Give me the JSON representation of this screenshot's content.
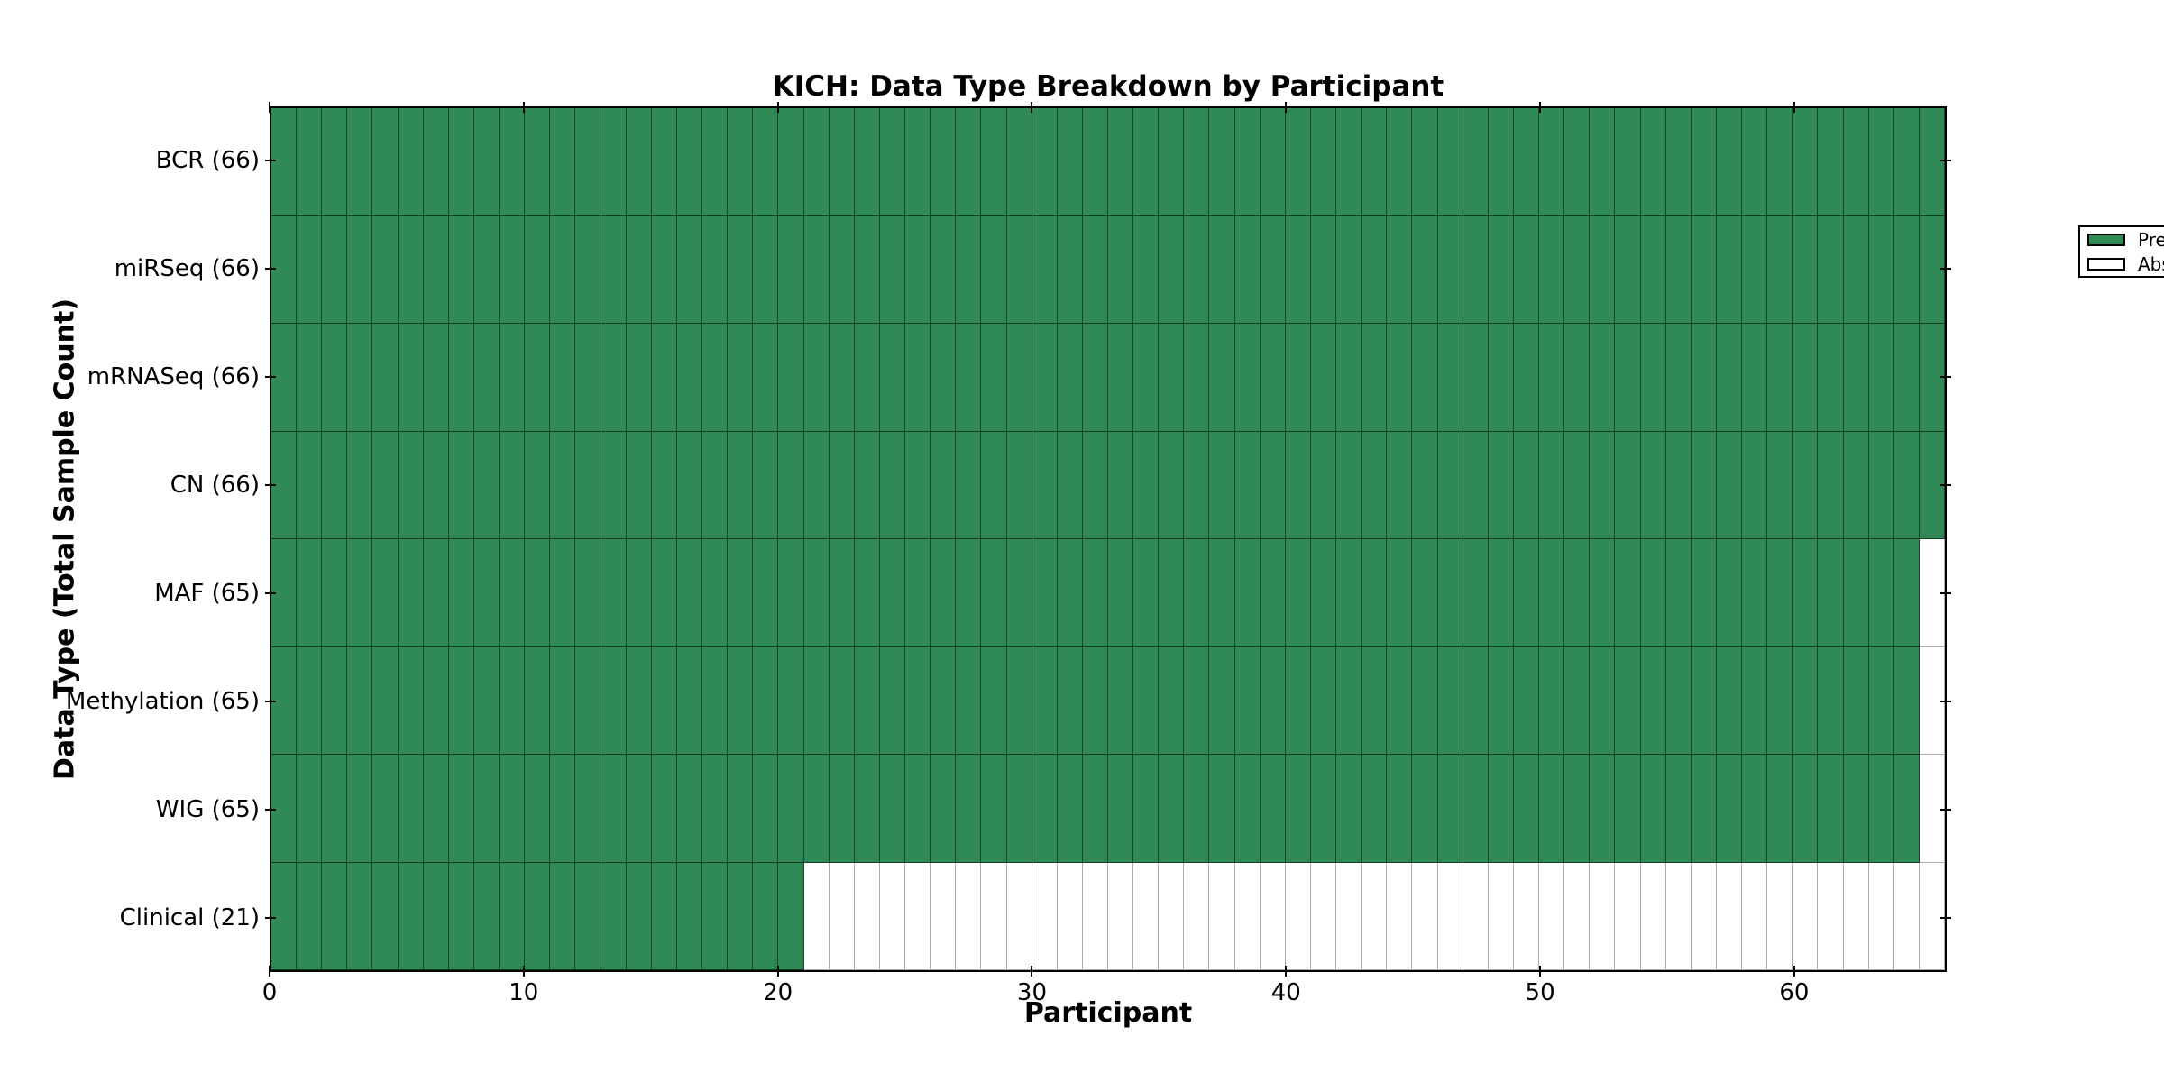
{
  "figure": {
    "title": "KICH: Data Type Breakdown by Participant",
    "xlabel": "Participant",
    "ylabel": "Data Type (Total Sample Count)"
  },
  "legend": {
    "items": [
      {
        "label": "Present",
        "color": "#2f8a56"
      },
      {
        "label": "Absent",
        "color": "#ffffff"
      }
    ]
  },
  "chart_data": {
    "type": "heatmap",
    "title": "KICH: Data Type Breakdown by Participant",
    "xlabel": "Participant",
    "ylabel": "Data Type (Total Sample Count)",
    "n_participants": 66,
    "n_rows": 8,
    "xlim": [
      0,
      66
    ],
    "x_ticks": [
      0,
      10,
      20,
      30,
      40,
      50,
      60
    ],
    "grid": false,
    "legend_position": "upper right",
    "colors": {
      "present": "#2f8a56",
      "absent": "#ffffff"
    },
    "rows": [
      {
        "label": "BCR (66)",
        "data_type": "BCR",
        "total_samples": 66,
        "present_count": 66,
        "absent_ranges": []
      },
      {
        "label": "miRSeq (66)",
        "data_type": "miRSeq",
        "total_samples": 66,
        "present_count": 66,
        "absent_ranges": []
      },
      {
        "label": "mRNASeq (66)",
        "data_type": "mRNASeq",
        "total_samples": 66,
        "present_count": 66,
        "absent_ranges": []
      },
      {
        "label": "CN (66)",
        "data_type": "CN",
        "total_samples": 66,
        "present_count": 66,
        "absent_ranges": []
      },
      {
        "label": "MAF (65)",
        "data_type": "MAF",
        "total_samples": 65,
        "present_count": 65,
        "absent_ranges": [
          [
            65,
            65
          ]
        ]
      },
      {
        "label": "Methylation (65)",
        "data_type": "Methylation",
        "total_samples": 65,
        "present_count": 65,
        "absent_ranges": [
          [
            65,
            65
          ]
        ]
      },
      {
        "label": "WIG (65)",
        "data_type": "WIG",
        "total_samples": 65,
        "present_count": 65,
        "absent_ranges": [
          [
            65,
            65
          ]
        ]
      },
      {
        "label": "Clinical (21)",
        "data_type": "Clinical",
        "total_samples": 21,
        "present_count": 21,
        "absent_ranges": [
          [
            21,
            65
          ]
        ]
      }
    ]
  }
}
